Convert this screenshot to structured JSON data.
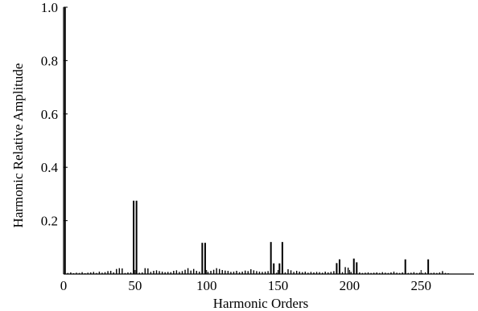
{
  "chart_data": {
    "type": "bar",
    "title": "",
    "xlabel": "Harmonic Orders",
    "ylabel": "Harmonic Relative Amplitude",
    "xlim": [
      0,
      287
    ],
    "ylim": [
      0,
      1.0
    ],
    "x_ticks": [
      0,
      50,
      100,
      150,
      200,
      250
    ],
    "y_ticks": [
      0.2,
      0.4,
      0.6,
      0.8,
      1.0
    ],
    "y_tick_labels": [
      "0.2",
      "0.4",
      "0.6",
      "0.8",
      "1.0"
    ],
    "grid": false,
    "series": [
      {
        "x": [
          1,
          3,
          5,
          7,
          9,
          11,
          13,
          15,
          17,
          19,
          21,
          23,
          25,
          27,
          29,
          31,
          33,
          35,
          37,
          39,
          41,
          43,
          45,
          47,
          49,
          51,
          53,
          55,
          57,
          59,
          61,
          63,
          65,
          67,
          69,
          71,
          73,
          75,
          77,
          79,
          81,
          83,
          85,
          87,
          89,
          91,
          93,
          95,
          97,
          99,
          101,
          103,
          105,
          107,
          109,
          111,
          113,
          115,
          117,
          119,
          121,
          123,
          125,
          127,
          129,
          131,
          133,
          135,
          137,
          139,
          141,
          143,
          145,
          147,
          149,
          151,
          153,
          155,
          157,
          159,
          161,
          163,
          165,
          167,
          169,
          171,
          173,
          175,
          177,
          179,
          181,
          183,
          185,
          187,
          189,
          191,
          193,
          195,
          197,
          199,
          201,
          203,
          205,
          207,
          209,
          211,
          213,
          215,
          217,
          219,
          221,
          223,
          225,
          227,
          229,
          231,
          233,
          235,
          237,
          239,
          241,
          243,
          245,
          247,
          249,
          251,
          253,
          255,
          257,
          259,
          261,
          263,
          265,
          267,
          269
        ],
        "values": [
          1.0,
          0.004,
          0.006,
          0.003,
          0.005,
          0.004,
          0.007,
          0.003,
          0.005,
          0.006,
          0.008,
          0.004,
          0.009,
          0.005,
          0.007,
          0.011,
          0.012,
          0.006,
          0.019,
          0.022,
          0.021,
          0.004,
          0.006,
          0.006,
          0.275,
          0.275,
          0.005,
          0.006,
          0.022,
          0.021,
          0.008,
          0.012,
          0.014,
          0.011,
          0.009,
          0.007,
          0.008,
          0.007,
          0.012,
          0.014,
          0.008,
          0.011,
          0.016,
          0.022,
          0.013,
          0.019,
          0.012,
          0.009,
          0.117,
          0.117,
          0.008,
          0.012,
          0.016,
          0.022,
          0.019,
          0.015,
          0.013,
          0.012,
          0.008,
          0.009,
          0.012,
          0.007,
          0.009,
          0.013,
          0.011,
          0.018,
          0.014,
          0.011,
          0.009,
          0.008,
          0.009,
          0.011,
          0.12,
          0.04,
          0.005,
          0.04,
          0.12,
          0.006,
          0.018,
          0.014,
          0.008,
          0.012,
          0.009,
          0.007,
          0.009,
          0.005,
          0.008,
          0.006,
          0.008,
          0.007,
          0.005,
          0.009,
          0.006,
          0.008,
          0.011,
          0.041,
          0.055,
          0.007,
          0.026,
          0.024,
          0.008,
          0.058,
          0.044,
          0.006,
          0.004,
          0.005,
          0.006,
          0.004,
          0.005,
          0.006,
          0.004,
          0.007,
          0.005,
          0.004,
          0.006,
          0.009,
          0.005,
          0.004,
          0.006,
          0.055,
          0.004,
          0.005,
          0.007,
          0.004,
          0.005,
          0.004,
          0.006,
          0.055,
          0.004,
          0.005,
          0.004,
          0.006,
          0.011,
          0.004,
          0.003
        ]
      }
    ]
  }
}
